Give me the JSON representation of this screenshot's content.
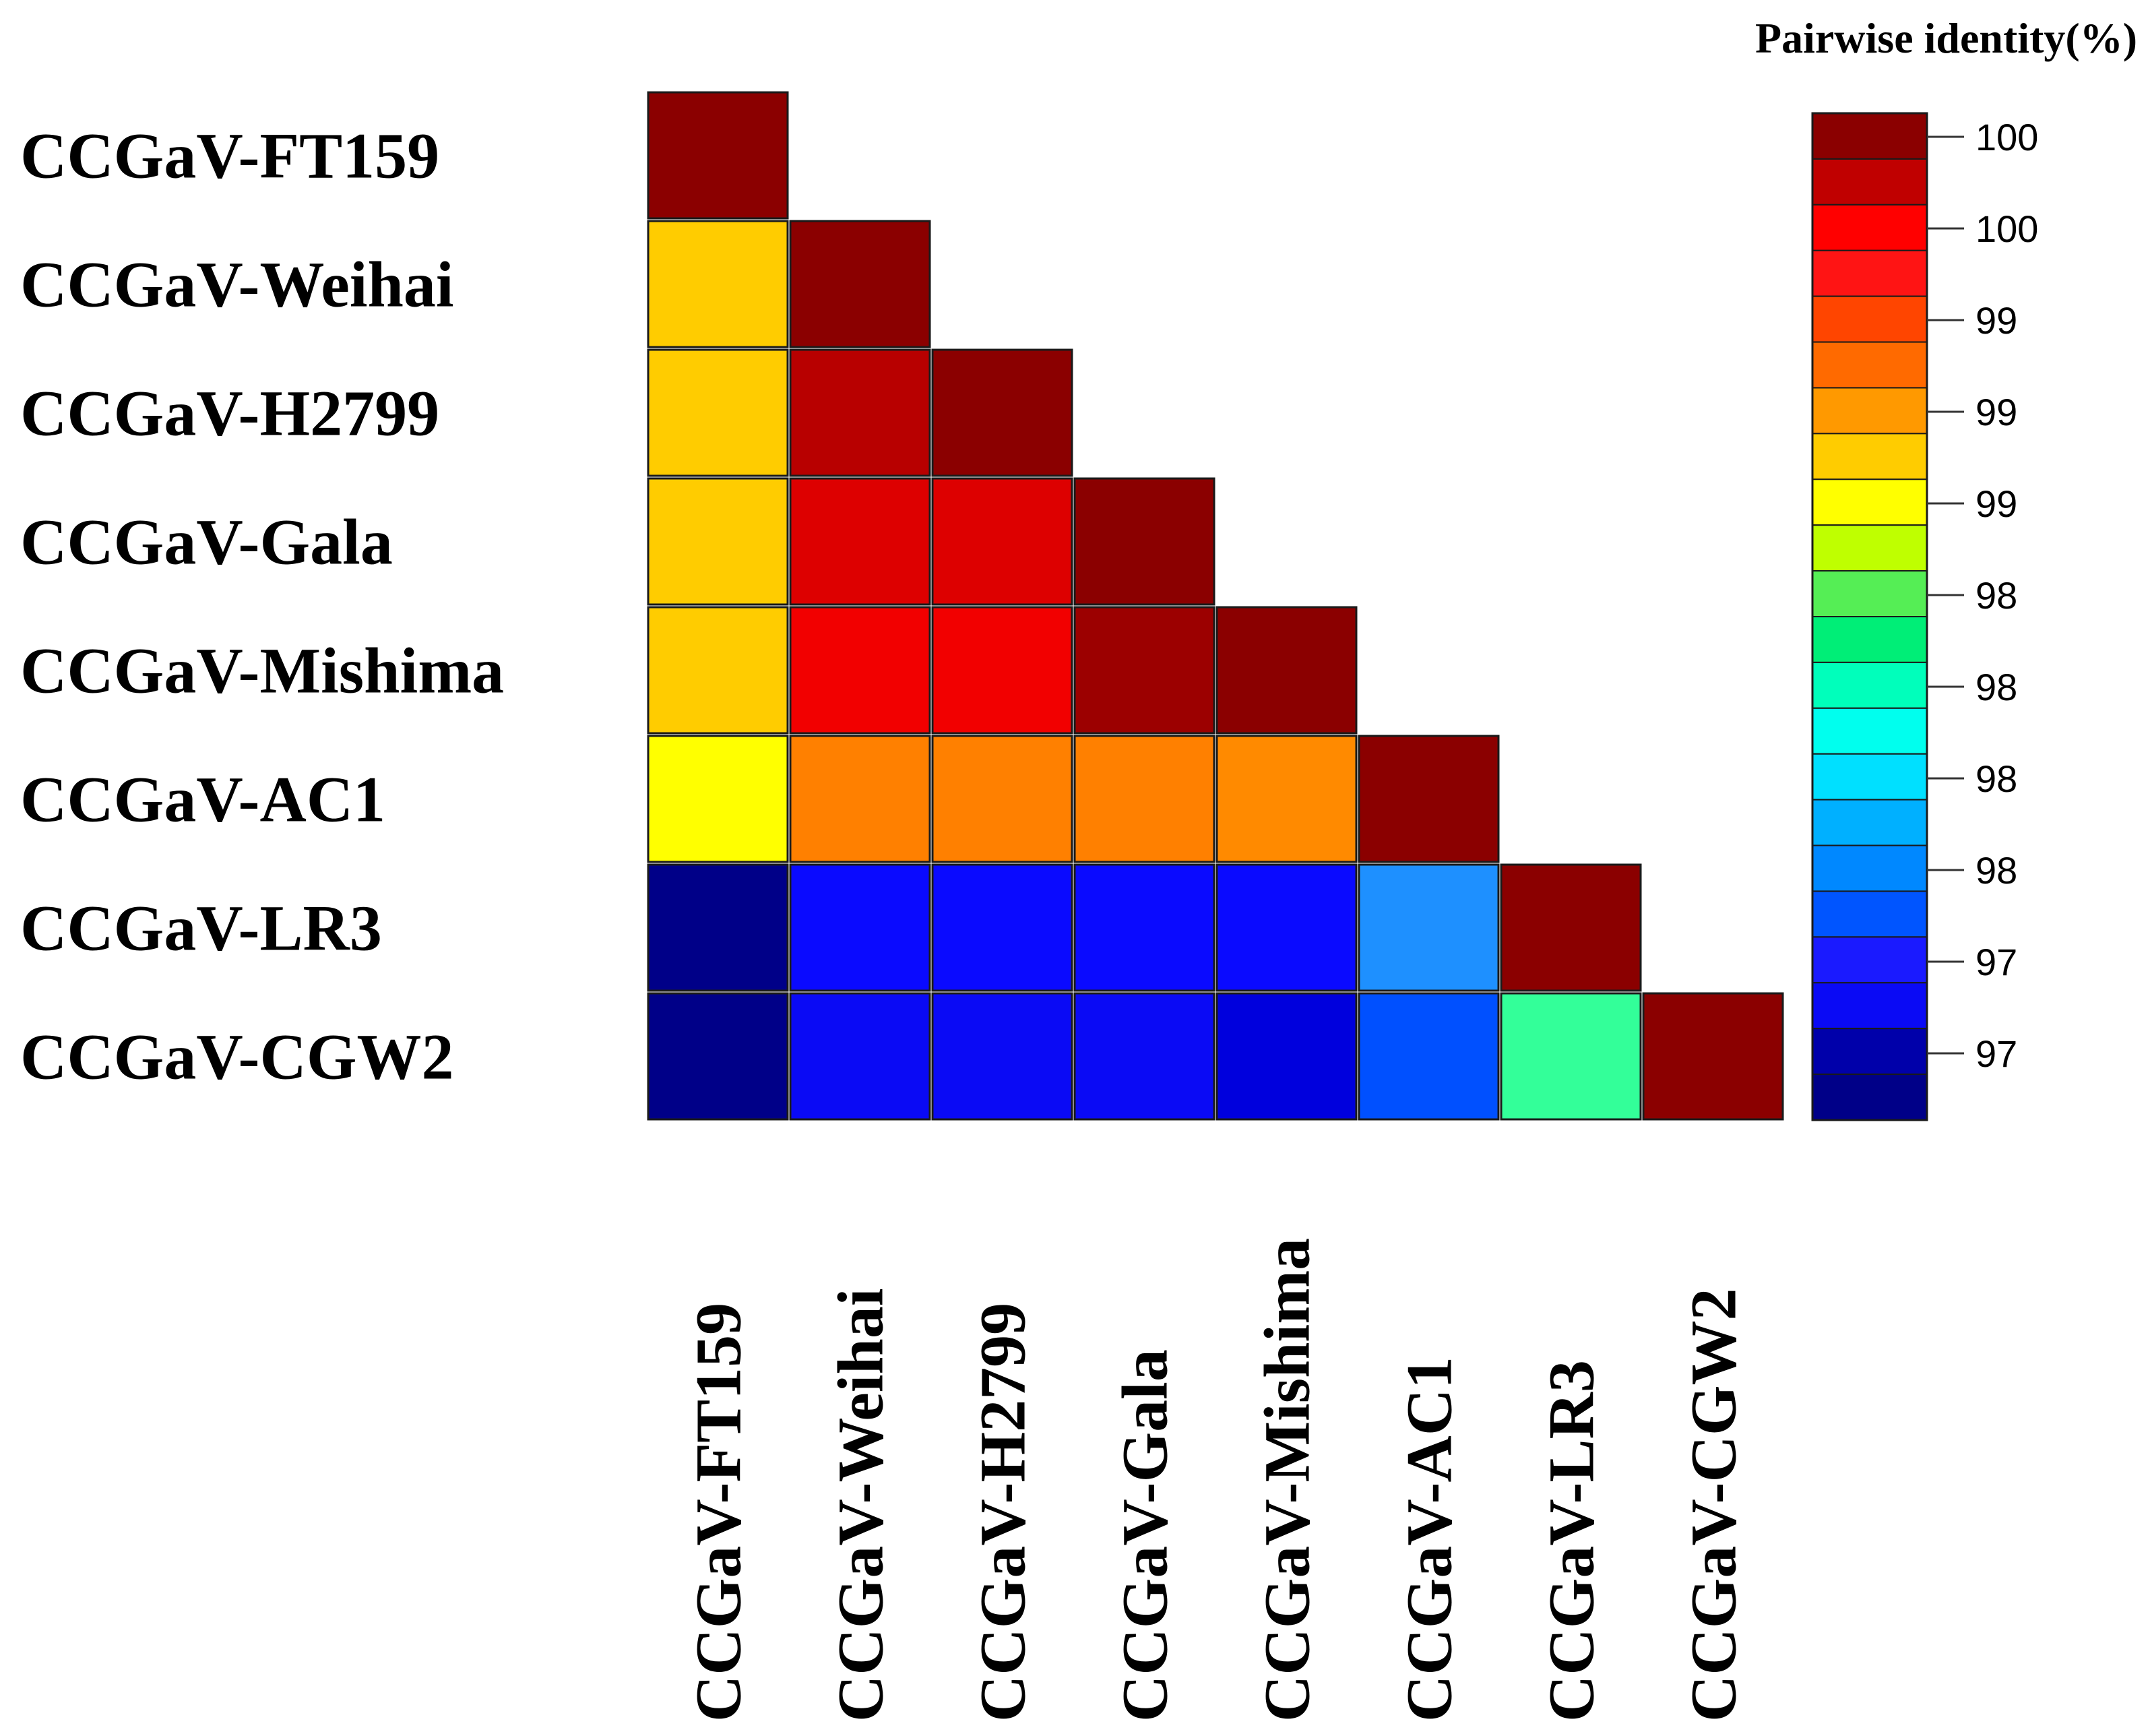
{
  "chart_data": {
    "type": "heatmap",
    "title": "",
    "layout": "lower-triangle",
    "row_labels": [
      "CCGaV-FT159",
      "CCGaV-Weihai",
      "CCGaV-H2799",
      "CCGaV-Gala",
      "CCGaV-Mishima",
      "CCGaV-AC1",
      "CCGaV-LR3",
      "CCGaV-CGW2"
    ],
    "col_labels": [
      "CCGaV-FT159",
      "CCGaV-Weihai",
      "CCGaV-H2799",
      "CCGaV-Gala",
      "CCGaV-Mishima",
      "CCGaV-AC1",
      "CCGaV-LR3",
      "CCGaV-CGW2"
    ],
    "matrix": [
      [
        100.0
      ],
      [
        99.0,
        100.0
      ],
      [
        99.0,
        99.9,
        100.0
      ],
      [
        99.0,
        99.7,
        99.7,
        100.0
      ],
      [
        99.0,
        99.6,
        99.6,
        99.9,
        100.0
      ],
      [
        98.9,
        99.2,
        99.2,
        99.2,
        99.2,
        100.0
      ],
      [
        96.8,
        97.3,
        97.3,
        97.3,
        97.3,
        97.9,
        100.0
      ],
      [
        96.8,
        97.3,
        97.3,
        97.3,
        97.2,
        97.6,
        98.4,
        100.0
      ]
    ],
    "legend": {
      "title": "Pairwise identity(%)",
      "tick_labels": [
        "100",
        "100",
        "99",
        "99",
        "99",
        "98",
        "98",
        "98",
        "98",
        "97",
        "97"
      ],
      "colors": [
        "#8b0000",
        "#c00000",
        "#ff0000",
        "#ff1414",
        "#ff4500",
        "#ff6a00",
        "#ff9900",
        "#ffcc00",
        "#ffff00",
        "#bfff00",
        "#55ee55",
        "#00ee77",
        "#00ffbb",
        "#00ffee",
        "#00e0ff",
        "#00b0ff",
        "#0088ff",
        "#0055ff",
        "#1a1aff",
        "#0a0af5",
        "#0000aa",
        "#000088"
      ]
    },
    "cell_colors": [
      [
        "#8b0000"
      ],
      [
        "#ffcc00",
        "#8b0000"
      ],
      [
        "#ffcc00",
        "#b80000",
        "#8b0000"
      ],
      [
        "#ffcc00",
        "#dd0000",
        "#dd0000",
        "#8b0000"
      ],
      [
        "#ffcc00",
        "#f20000",
        "#f20000",
        "#9c0000",
        "#8b0000"
      ],
      [
        "#ffff00",
        "#ff8000",
        "#ff8000",
        "#ff8000",
        "#ff8a00",
        "#8b0000"
      ],
      [
        "#000088",
        "#0a0aff",
        "#0a0aff",
        "#0a0aff",
        "#0a0aff",
        "#1e90ff",
        "#8b0000"
      ],
      [
        "#000088",
        "#0a0af5",
        "#0a0af5",
        "#0a0af5",
        "#0000dd",
        "#0050ff",
        "#33ff99",
        "#8b0000"
      ]
    ]
  }
}
